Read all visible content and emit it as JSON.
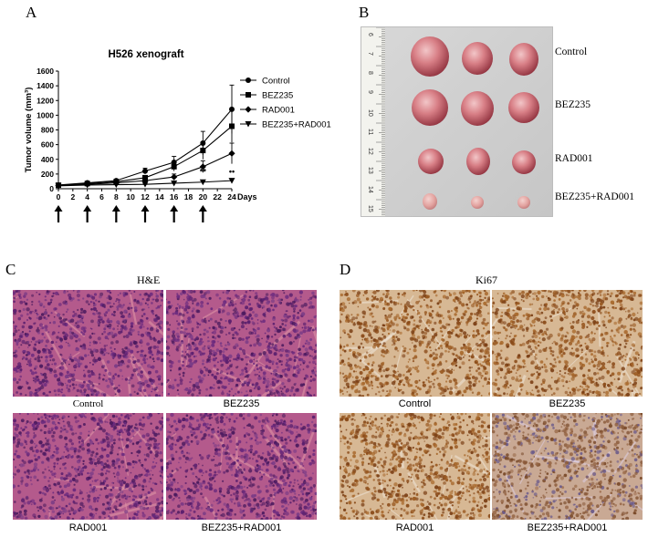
{
  "panels": {
    "a": {
      "letter": "A"
    },
    "b": {
      "letter": "B"
    },
    "c": {
      "letter": "C",
      "title": "H&E"
    },
    "d": {
      "letter": "D",
      "title": "Ki67"
    }
  },
  "chart_data": {
    "type": "line",
    "title": "H526 xenograft",
    "ylabel": "Tumor volume (mm³)",
    "xlabel": "Days",
    "x": [
      0,
      4,
      8,
      12,
      16,
      20,
      24
    ],
    "xticks": [
      "0",
      "2",
      "4",
      "6",
      "8",
      "10",
      "12",
      "14",
      "16",
      "18",
      "20",
      "22",
      "24"
    ],
    "xtick_values": [
      0,
      2,
      4,
      6,
      8,
      10,
      12,
      14,
      16,
      18,
      20,
      22,
      24
    ],
    "yticks": [
      "0",
      "200",
      "400",
      "600",
      "800",
      "1000",
      "1200",
      "1400",
      "1600"
    ],
    "ylim": [
      0,
      1600
    ],
    "xlim": [
      0,
      24
    ],
    "legend_position": "top-right",
    "series": [
      {
        "name": "Control",
        "marker": "circle",
        "values": [
          50,
          80,
          110,
          240,
          360,
          620,
          1080
        ],
        "errors": [
          10,
          15,
          20,
          40,
          80,
          160,
          330
        ]
      },
      {
        "name": "BEZ235",
        "marker": "square",
        "values": [
          48,
          70,
          95,
          150,
          300,
          520,
          850
        ],
        "errors": [
          10,
          12,
          18,
          30,
          60,
          120,
          220
        ]
      },
      {
        "name": "RAD001",
        "marker": "diamond",
        "values": [
          45,
          60,
          80,
          110,
          160,
          300,
          480
        ],
        "errors": [
          8,
          10,
          15,
          20,
          40,
          80,
          140
        ]
      },
      {
        "name": "BEZ235+RAD001",
        "marker": "triangle-down",
        "values": [
          40,
          50,
          55,
          60,
          75,
          90,
          110
        ],
        "errors": [
          5,
          8,
          8,
          10,
          12,
          15,
          20
        ]
      }
    ],
    "annotations": [
      {
        "text": "**",
        "x": 20,
        "y": 190
      },
      {
        "text": "••",
        "x": 24,
        "y": 200
      }
    ],
    "arrows_at_days": [
      0,
      4,
      8,
      12,
      16,
      20
    ]
  },
  "photo": {
    "labels": [
      "Control",
      "BEZ235",
      "RAD001",
      "BEZ235+RAD001"
    ],
    "ruler_numbers": [
      "6",
      "7",
      "8",
      "9",
      "10",
      "11",
      "12",
      "13",
      "14",
      "15"
    ]
  },
  "he": {
    "captions": [
      "Control",
      "BEZ235",
      "RAD001",
      "BEZ235+RAD001"
    ]
  },
  "ki67": {
    "captions": [
      "Control",
      "BEZ235",
      "RAD001",
      "BEZ235+RAD001"
    ]
  }
}
